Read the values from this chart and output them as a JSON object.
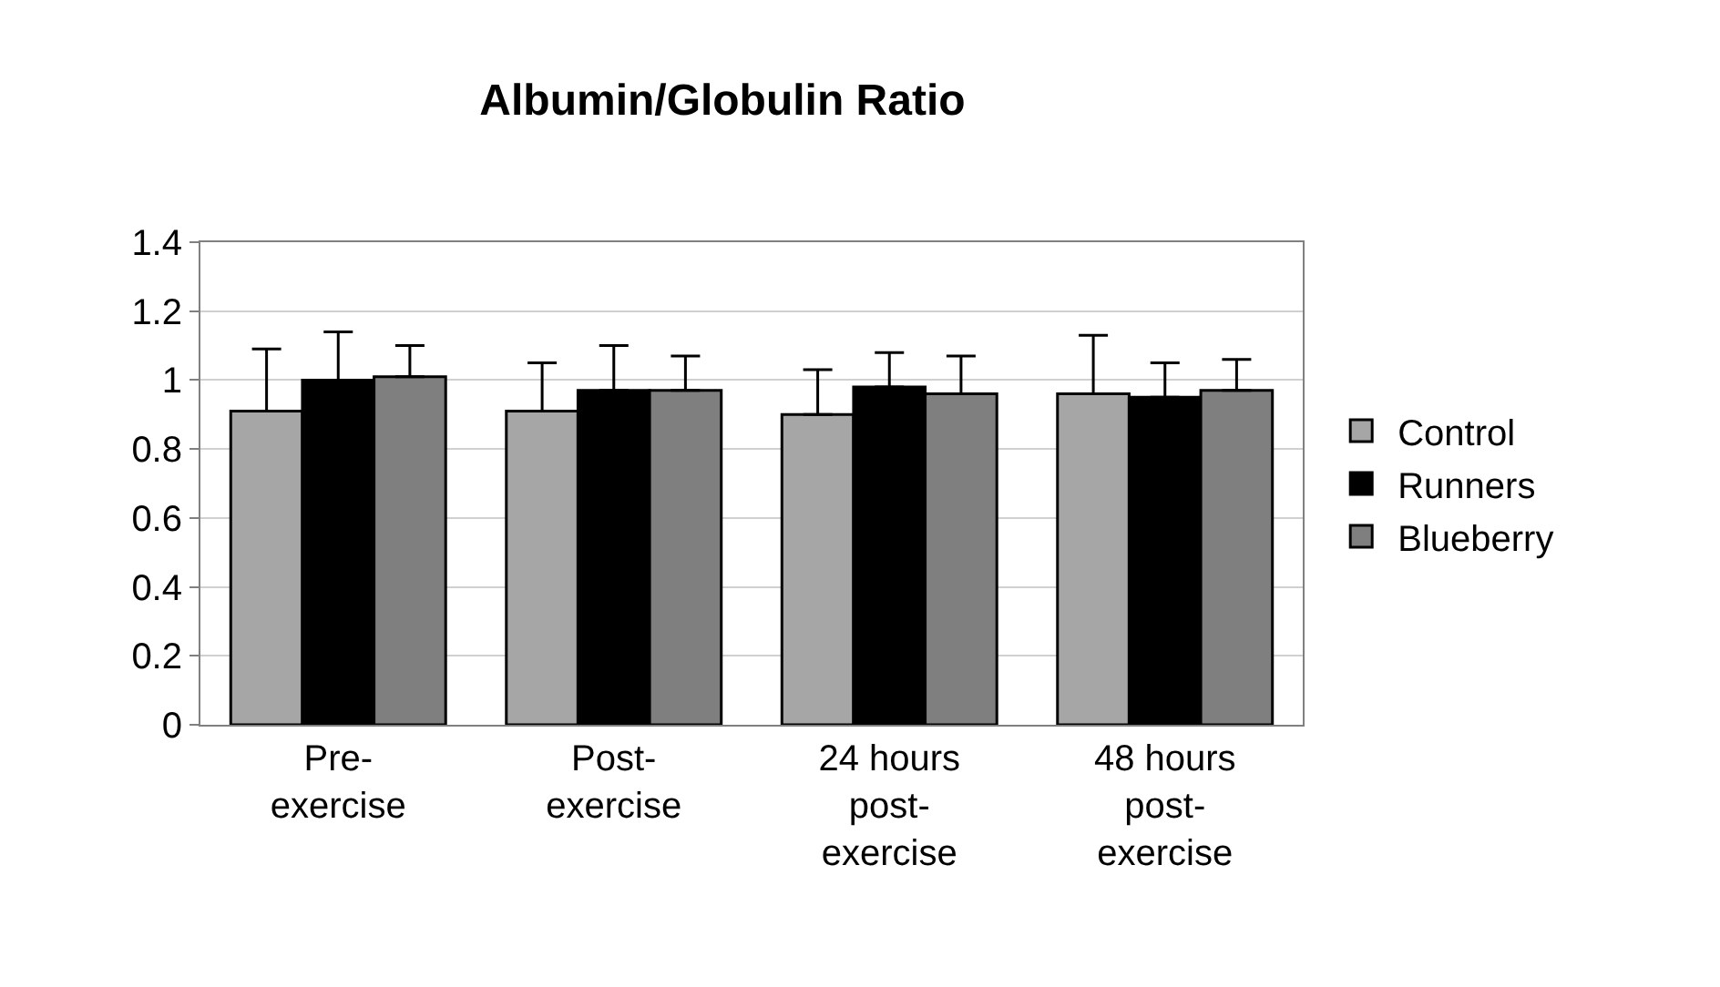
{
  "chart_data": {
    "type": "bar",
    "title": "Albumin/Globulin Ratio",
    "categories": [
      "Pre-\nexercise",
      "Post-\nexercise",
      "24 hours\npost-\nexercise",
      "48 hours\npost-\nexercise"
    ],
    "series": [
      {
        "name": "Control",
        "color": "#a6a6a6",
        "values": [
          0.91,
          0.91,
          0.9,
          0.96
        ],
        "errors": [
          [
            0.91,
            1.09
          ],
          [
            0.91,
            1.05
          ],
          [
            0.9,
            1.03
          ],
          [
            0.96,
            1.13
          ]
        ]
      },
      {
        "name": "Runners",
        "color": "#000000",
        "values": [
          1.0,
          0.97,
          0.98,
          0.95
        ],
        "errors": [
          [
            1.0,
            1.14
          ],
          [
            0.97,
            1.1
          ],
          [
            0.98,
            1.08
          ],
          [
            0.95,
            1.05
          ]
        ]
      },
      {
        "name": "Blueberry",
        "color": "#7f7f7f",
        "values": [
          1.01,
          0.97,
          0.96,
          0.97
        ],
        "errors": [
          [
            1.01,
            1.1
          ],
          [
            0.97,
            1.07
          ],
          [
            0.96,
            1.07
          ],
          [
            0.97,
            1.06
          ]
        ]
      }
    ],
    "ylim": [
      0,
      1.4
    ],
    "yticks": [
      0,
      0.2,
      0.4,
      0.6,
      0.8,
      1,
      1.2,
      1.4
    ],
    "grid": "y",
    "legend": "right"
  }
}
